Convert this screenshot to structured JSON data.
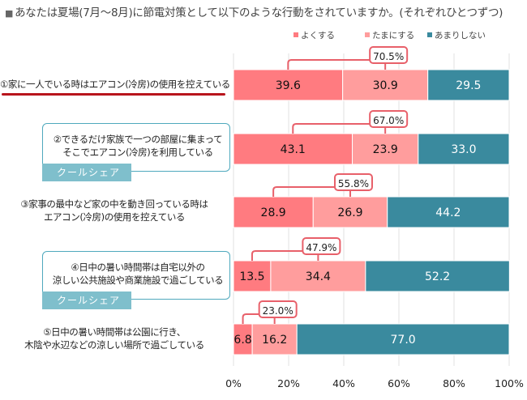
{
  "chart_data": {
    "type": "bar",
    "orientation": "horizontal",
    "stacked": true,
    "title": "あなたは夏場(7月～8月)に節電対策として以下のような行動をされていますか。(それぞれひとつずつ)",
    "title_marker": "■",
    "xlabel": "",
    "ylabel": "",
    "xlim": [
      0,
      100
    ],
    "x_ticks": [
      "0%",
      "20%",
      "40%",
      "60%",
      "80%",
      "100%"
    ],
    "grid": true,
    "legend_position": "top-right",
    "categories": [
      "①家に一人でいる時はエアコン(冷房)の使用を控えている",
      "②できるだけ家族で一つの部屋に集まって そこでエアコン(冷房)を利用している",
      "③家事の最中など家の中を動き回っている時は エアコン(冷房)の使用を控えている",
      "④日中の暑い時間帯は自宅以外の 涼しい公共施設や商業施設で過ごしている",
      "⑤日中の暑い時間帯は公園に行き、 木陰や水辺などの涼しい場所で過ごしている"
    ],
    "category_lines": [
      [
        "①家に一人でいる時はエアコン(冷房)の使用を控えている"
      ],
      [
        "②できるだけ家族で一つの部屋に集まって",
        "そこでエアコン(冷房)を利用している"
      ],
      [
        "③家事の最中など家の中を動き回っている時は",
        "エアコン(冷房)の使用を控えている"
      ],
      [
        "④日中の暑い時間帯は自宅以外の",
        "涼しい公共施設や商業施設で過ごしている"
      ],
      [
        "⑤日中の暑い時間帯は公園に行き、",
        "木陰や水辺などの涼しい場所で過ごしている"
      ]
    ],
    "series": [
      {
        "name": "よくする",
        "color": "#ff7b80",
        "label_color": "#111111",
        "values": [
          39.6,
          43.1,
          28.9,
          13.5,
          6.8
        ]
      },
      {
        "name": "たまにする",
        "color": "#ff9d9d",
        "label_color": "#111111",
        "values": [
          30.9,
          23.9,
          26.9,
          34.4,
          16.2
        ]
      },
      {
        "name": "あまりしない",
        "color": "#3a8a9e",
        "label_color": "#ffffff",
        "values": [
          29.5,
          33.0,
          44.2,
          52.2,
          77.0
        ]
      }
    ],
    "annotations": {
      "combined_totals": [
        "70.5%",
        "67.0%",
        "55.8%",
        "47.9%",
        "23.0%"
      ],
      "bracket_color": "#e8606a",
      "tags": [
        {
          "category_index": 1,
          "text": "クールシェア"
        },
        {
          "category_index": 3,
          "text": "クールシェア"
        }
      ],
      "highlighted_category_index": 0
    }
  }
}
